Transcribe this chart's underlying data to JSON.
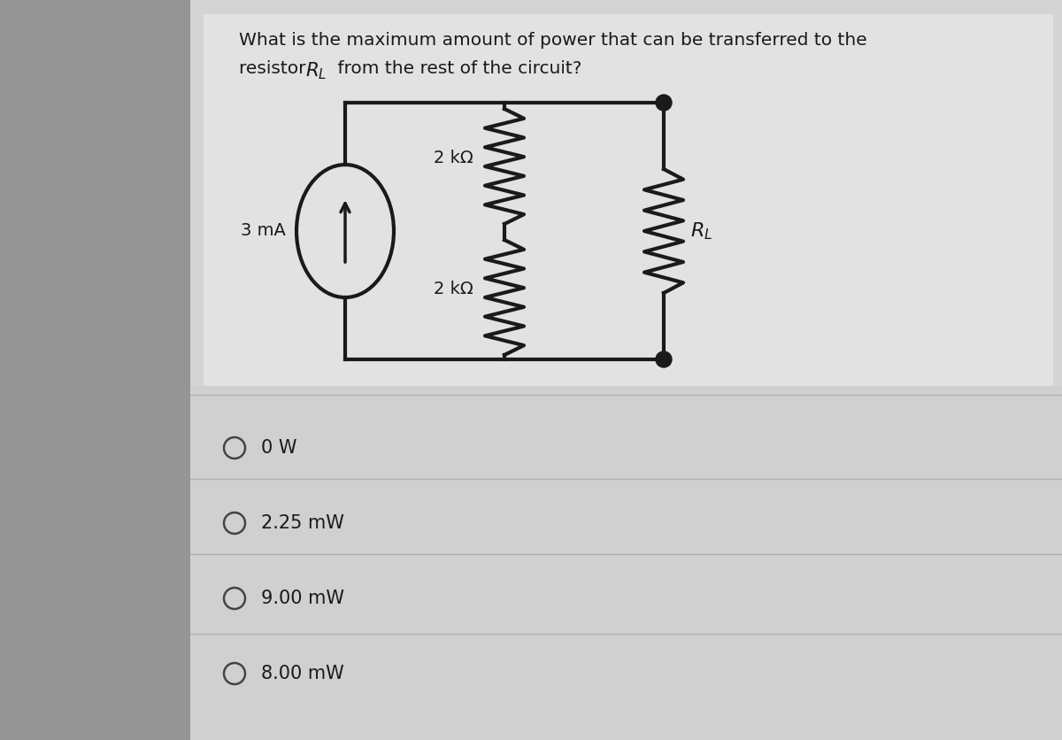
{
  "bg_left_color": "#a8a8a8",
  "bg_right_color": "#c8c8c8",
  "panel_color": "#e8e8e8",
  "choices_panel_color": "#dcdcdc",
  "question_line1": "What is the maximum amount of power that can be transferred to the",
  "question_line2": "resistor ",
  "question_rl": "R",
  "question_end": " from the rest of the circuit?",
  "current_source_label": "3 mA",
  "resistor1_label": "2 kΩ",
  "resistor2_label": "2 kΩ",
  "rl_label": "R",
  "choices": [
    "0 W",
    "2.25 mW",
    "9.00 mW",
    "8.00 mW"
  ],
  "text_color": "#1a1a1a",
  "circuit_color": "#1a1a1a",
  "line_width": 3.0,
  "font_size_question": 14.5,
  "font_size_labels": 13,
  "font_size_choices": 14
}
